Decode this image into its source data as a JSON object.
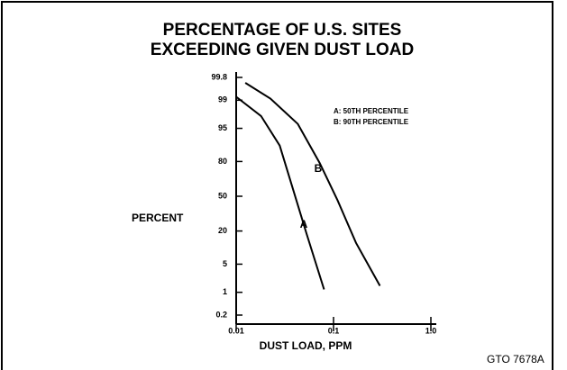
{
  "chart_data": {
    "type": "line",
    "title": [
      "PERCENTAGE OF U.S. SITES",
      "EXCEEDING GIVEN DUST LOAD"
    ],
    "xlabel": "DUST LOAD, PPM",
    "ylabel": "PERCENT",
    "xscale": "log",
    "yscale": "probability",
    "xlim": [
      0.01,
      1
    ],
    "xticks": [
      0.01,
      0.1,
      {
        "value": 1,
        "label": "1.0"
      }
    ],
    "ylim": [
      0.2,
      99.8
    ],
    "yticks": [
      0.2,
      1,
      5,
      20,
      50,
      80,
      95,
      99,
      99.8
    ],
    "series": [
      {
        "name": "A",
        "color": "#000000",
        "x": [
          0.01,
          0.018,
          0.028,
          0.038,
          0.053,
          0.08
        ],
        "values": [
          99.2,
          97.4,
          89,
          58,
          18,
          1.2
        ]
      },
      {
        "name": "B",
        "color": "#000000",
        "x": [
          0.0124,
          0.0225,
          0.043,
          0.072,
          0.11,
          0.17,
          0.3
        ],
        "values": [
          99.7,
          99.1,
          96,
          79,
          46,
          13,
          1.5
        ]
      }
    ],
    "legend": [
      "A: 50TH PERCENTILE",
      "B: 90TH PERCENTILE"
    ],
    "annotations": [
      "GTO 7678A"
    ]
  }
}
